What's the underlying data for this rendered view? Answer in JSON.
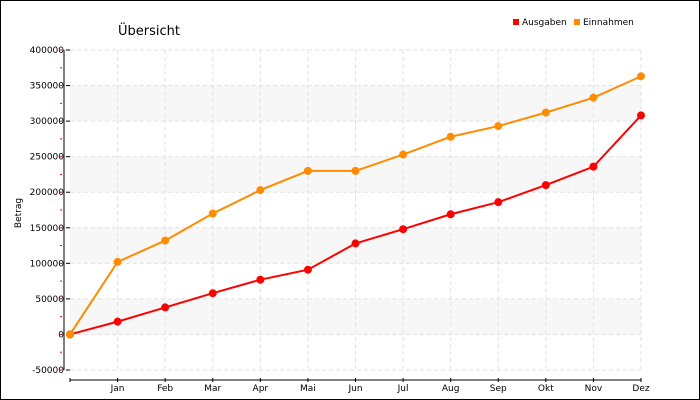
{
  "chart_data": {
    "type": "line",
    "title": "Übersicht",
    "ylabel": "Betrag",
    "xlabel": "",
    "categories": [
      "",
      "Jan",
      "Feb",
      "Mar",
      "Apr",
      "Mai",
      "Jun",
      "Jul",
      "Aug",
      "Sep",
      "Okt",
      "Nov",
      "Dez"
    ],
    "ylim": [
      -50000,
      400000
    ],
    "yticks": [
      -50000,
      0,
      50000,
      100000,
      150000,
      200000,
      250000,
      300000,
      350000,
      400000
    ],
    "ytick_labels": [
      "-50000",
      "0",
      "50000",
      "100000",
      "150000",
      "200000",
      "250000",
      "300000",
      "350000",
      "400000"
    ],
    "grid": true,
    "legend_position": "top-right",
    "series": [
      {
        "name": "Ausgaben",
        "color": "#ff0000",
        "values": [
          0,
          18000,
          38000,
          58000,
          77000,
          91000,
          128000,
          148000,
          169000,
          186000,
          210000,
          236000,
          308000
        ]
      },
      {
        "name": "Einnahmen",
        "color": "#ff8c00",
        "values": [
          0,
          102000,
          132000,
          170000,
          203000,
          230000,
          230000,
          253000,
          278000,
          293000,
          312000,
          333000,
          363000
        ]
      }
    ]
  }
}
